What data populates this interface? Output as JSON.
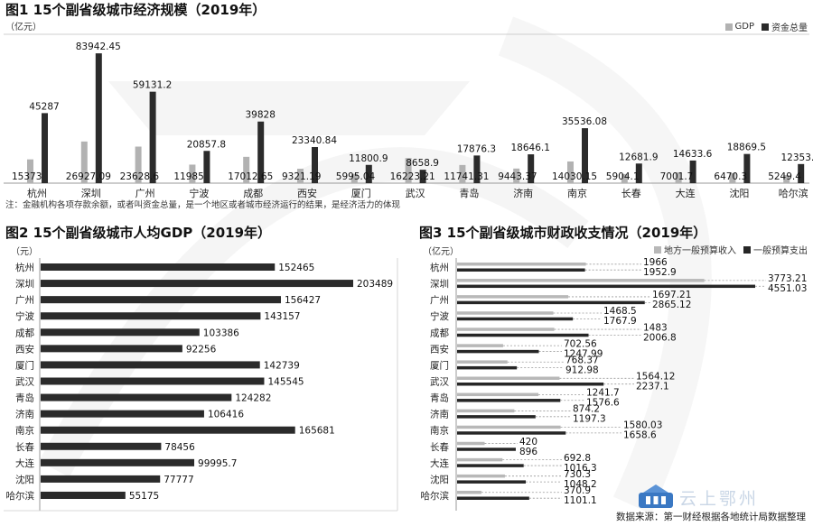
{
  "colors": {
    "gdp": "#b2b2b2",
    "capital": "#2b2b2b",
    "revenue": "#b8b8b8",
    "expenditure": "#262626",
    "axis": "#999999"
  },
  "watermark": {
    "text": "云上鄂州",
    "icon": "building-badge-icon"
  },
  "source": "数据来源：第一财经根据各地统计局数据整理",
  "chart_data": [
    {
      "id": "fig1",
      "type": "bar",
      "title": "图1 15个副省级城市经济规模（2019年）",
      "unit_label": "（亿元）",
      "note": "注：金融机构各项存款余额，或者叫资金总量，是一个地区或者城市经济运行的结果，是经济活力的体现",
      "legend_position": "top-right",
      "categories": [
        "杭州",
        "深圳",
        "广州",
        "宁波",
        "成都",
        "西安",
        "厦门",
        "武汉",
        "青岛",
        "济南",
        "南京",
        "长春",
        "大连",
        "沈阳",
        "哈尔滨"
      ],
      "series": [
        {
          "name": "GDP",
          "labels": [
            "15373",
            "26927.09",
            "23628.6",
            "11985",
            "17012.65",
            "9321.19",
            "5995.04",
            "16223.21",
            "11741.31",
            "9443.37",
            "14030.15",
            "5904.1",
            "7001.7",
            "6470.3",
            "5249.4"
          ],
          "values": [
            15373,
            26927.09,
            23628.6,
            11985,
            17012.65,
            9321.19,
            5995.04,
            16223.21,
            11741.31,
            9443.37,
            14030.15,
            5904.1,
            7001.7,
            6470.3,
            5249.4
          ]
        },
        {
          "name": "资金总量",
          "labels": [
            "45287",
            "83942.45",
            "59131.2",
            "20857.8",
            "39828",
            "23340.84",
            "11800.9",
            "8658.9",
            "17876.3",
            "18646.1",
            "35536.08",
            "12681.9",
            "14633.6",
            "18869.5",
            "12353.1"
          ],
          "values": [
            45287,
            83942.45,
            59131.2,
            20857.8,
            39828,
            23340.84,
            11800.9,
            8658.9,
            17876.3,
            18646.1,
            35536.08,
            12681.9,
            14633.6,
            18869.5,
            12353.1
          ]
        }
      ],
      "ylim": [
        0,
        90000
      ]
    },
    {
      "id": "fig2",
      "type": "bar",
      "orientation": "horizontal",
      "title": "图2 15个副省级城市人均GDP（2019年）",
      "unit_label": "（元）",
      "categories": [
        "杭州",
        "深圳",
        "广州",
        "宁波",
        "成都",
        "西安",
        "厦门",
        "武汉",
        "青岛",
        "济南",
        "南京",
        "长春",
        "大连",
        "沈阳",
        "哈尔滨"
      ],
      "labels": [
        "152465",
        "203489",
        "156427",
        "143157",
        "103386",
        "92256",
        "142739",
        "145545",
        "124282",
        "106416",
        "165681",
        "78456",
        "99995.7",
        "77777",
        "55175"
      ],
      "values": [
        152465,
        203489,
        156427,
        143157,
        103386,
        92256,
        142739,
        145545,
        124282,
        106416,
        165681,
        78456,
        99995.7,
        77777,
        55175
      ],
      "xlim": [
        0,
        210000
      ]
    },
    {
      "id": "fig3",
      "type": "bar",
      "orientation": "horizontal",
      "title": "图3  15个副省级城市财政收支情况（2019年）",
      "unit_label": "（亿元）",
      "legend_position": "top-right",
      "categories": [
        "杭州",
        "深圳",
        "广州",
        "宁波",
        "成都",
        "西安",
        "厦门",
        "武汉",
        "青岛",
        "济南",
        "南京",
        "长春",
        "大连",
        "沈阳",
        "哈尔滨"
      ],
      "series": [
        {
          "name": "地方一般预算收入",
          "labels": [
            "1966",
            "3773.21",
            "1697.21",
            "1468.5",
            "1483",
            "702.56",
            "768.37",
            "1564.12",
            "1241.7",
            "874.2",
            "1580.03",
            "420",
            "692.8",
            "730.3",
            "370.9"
          ],
          "values": [
            1966,
            3773.21,
            1697.21,
            1468.5,
            1483,
            702.56,
            768.37,
            1564.12,
            1241.7,
            874.2,
            1580.03,
            420,
            692.8,
            730.3,
            370.9
          ]
        },
        {
          "name": "一般预算支出",
          "labels": [
            "1952.9",
            "4551.03",
            "2865.12",
            "1767.9",
            "2006.8",
            "1247.99",
            "912.98",
            "2237.1",
            "1576.6",
            "1197.3",
            "1658.6",
            "896",
            "1016.3",
            "1048.2",
            "1101.1"
          ],
          "values": [
            1952.9,
            4551.03,
            2865.12,
            1767.9,
            2006.8,
            1247.99,
            912.98,
            2237.1,
            1576.6,
            1197.3,
            1658.6,
            896,
            1016.3,
            1048.2,
            1101.1
          ]
        }
      ],
      "xlim": [
        0,
        4700
      ]
    }
  ]
}
